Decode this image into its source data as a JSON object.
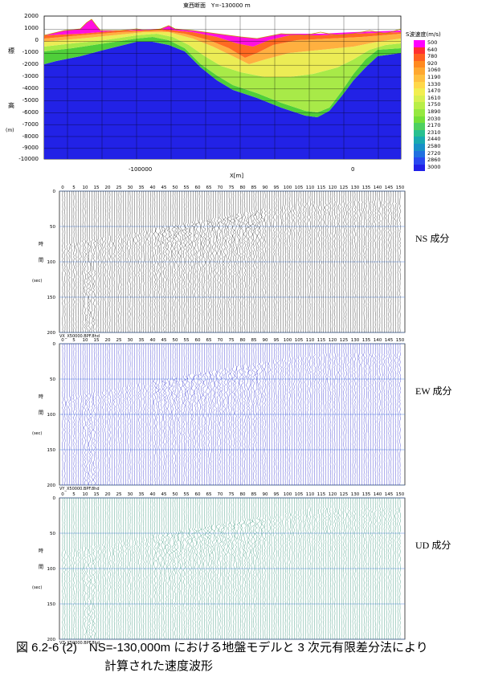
{
  "section_title": "東西断面　Y=-130000 ｍ",
  "section": {
    "y_label_chars": [
      "標",
      "高"
    ],
    "y_unit": "(m)",
    "y_ticks": [
      "2000",
      "1000",
      "0",
      "-1000",
      "-2000",
      "-3000",
      "-4000",
      "-5000",
      "-6000",
      "-7000",
      "-8000",
      "-9000",
      "-10000"
    ],
    "x_ticks": [
      "-100000",
      "0"
    ],
    "x_label": "X[m]",
    "legend_title": "S波速度(m/s)",
    "legend_values": [
      "500",
      "640",
      "780",
      "920",
      "1060",
      "1190",
      "1330",
      "1470",
      "1610",
      "1750",
      "1890",
      "2030",
      "2170",
      "2310",
      "2440",
      "2580",
      "2720",
      "2860",
      "3000"
    ],
    "legend_colors": [
      "#ff00ff",
      "#ff3030",
      "#ff6020",
      "#ff8a20",
      "#ffa830",
      "#ffc040",
      "#ffd84a",
      "#f2ee50",
      "#d8f050",
      "#b8ee48",
      "#96e840",
      "#74e038",
      "#4ed060",
      "#28c090",
      "#18aab0",
      "#1890c8",
      "#2070e0",
      "#2848f0",
      "#2020e8"
    ]
  },
  "panels": [
    {
      "label": "NS 成分",
      "file": "VX_X50000.BPF.8hd",
      "color": "#000000"
    },
    {
      "label": "EW 成分",
      "file": "VY_X50000.BPF.8hd",
      "color": "#1010c8"
    },
    {
      "label": "UD 成分",
      "file": "VZ_X50000.BPF.8hd",
      "color": "#108060"
    }
  ],
  "trace_axis": {
    "ticks": [
      "0",
      "5",
      "10",
      "15",
      "20",
      "25",
      "30",
      "35",
      "40",
      "45",
      "50",
      "55",
      "60",
      "65",
      "70",
      "75",
      "80",
      "85",
      "90",
      "95",
      "100",
      "105",
      "110",
      "115",
      "120",
      "125",
      "130",
      "135",
      "140",
      "145",
      "150"
    ]
  },
  "time_axis": {
    "ticks": [
      "0",
      "50",
      "100",
      "150",
      "200"
    ],
    "label_chars": [
      "時",
      "間"
    ],
    "unit": "(sec)"
  },
  "caption": {
    "line1": "図 6.2-6 (2)　NS=-130,000m における地盤モデルと 3 次元有限差分法により",
    "line2": "計算された速度波形"
  }
}
